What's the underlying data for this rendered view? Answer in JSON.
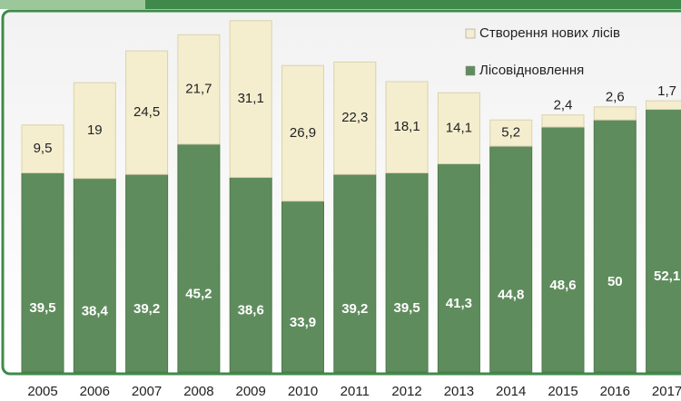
{
  "chart_data": {
    "type": "stacked_bar",
    "categories": [
      "2005",
      "2006",
      "2007",
      "2008",
      "2009",
      "2010",
      "2011",
      "2012",
      "2013",
      "2014",
      "2015",
      "2016",
      "2017"
    ],
    "series": [
      {
        "name": "Лісовідновлення",
        "color": "#5f8c5d",
        "values": [
          39.5,
          38.4,
          39.2,
          45.2,
          38.6,
          33.9,
          39.2,
          39.5,
          41.3,
          44.8,
          48.6,
          50,
          52.1
        ],
        "value_labels": [
          "39,5",
          "38,4",
          "39,2",
          "45,2",
          "38,6",
          "33,9",
          "39,2",
          "39,5",
          "41,3",
          "44,8",
          "48,6",
          "50",
          "52,1"
        ]
      },
      {
        "name": "Створення нових лісів",
        "color": "#f4eecf",
        "values": [
          9.5,
          19,
          24.5,
          21.7,
          31.1,
          26.9,
          22.3,
          18.1,
          14.1,
          5.2,
          2.4,
          2.6,
          1.7
        ],
        "value_labels": [
          "9,5",
          "19",
          "24,5",
          "21,7",
          "31,1",
          "26,9",
          "22,3",
          "18,1",
          "14,1",
          "5,2",
          "2,4",
          "2,6",
          "1,7"
        ]
      }
    ],
    "ylim": [
      0,
      72
    ]
  }
}
